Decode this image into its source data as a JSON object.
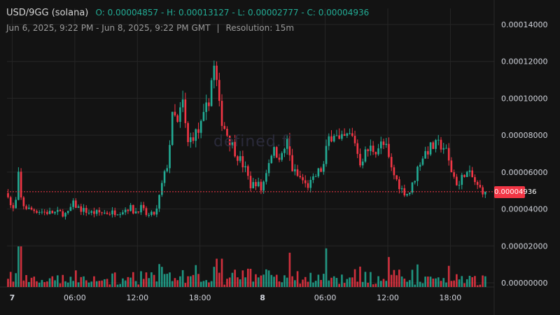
{
  "header": {
    "symbol": "USD/9GG (solana)",
    "ohlc": "O: 0.00004857 - H: 0.00013127 - L: 0.00002777 - C: 0.00004936",
    "date_range": "Jun 6, 2025, 9:22 PM - Jun 8, 2025, 9:22 PM GMT",
    "separator": "|",
    "resolution": "Resolution: 15m"
  },
  "watermark": "defined.fi",
  "last_price_label": "0.00004936",
  "colors": {
    "up": "#22ab94",
    "down": "#f23645",
    "grid": "#262626",
    "axis_text": "#d1d4dc",
    "background": "#131313"
  },
  "chart_data": {
    "type": "candlestick",
    "title": "USD/9GG (solana)",
    "resolution": "15m",
    "price_axis_ticks": [
      "0.00014000",
      "0.00012000",
      "0.00010000",
      "0.00008000",
      "0.00006000",
      "0.00004000",
      "0.00002000",
      "0.00000000"
    ],
    "price_axis_values": [
      0.00014,
      0.00012,
      0.0001,
      8e-05,
      6e-05,
      4e-05,
      2e-05,
      0
    ],
    "ylim": [
      -3e-06,
      0.000151
    ],
    "time_axis_ticks": [
      {
        "label": "7",
        "hour": 27,
        "bold": true
      },
      {
        "label": "06:00",
        "hour": 33,
        "bold": false
      },
      {
        "label": "12:00",
        "hour": 39,
        "bold": false
      },
      {
        "label": "18:00",
        "hour": 45,
        "bold": false
      },
      {
        "label": "8",
        "hour": 51,
        "bold": true
      },
      {
        "label": "06:00",
        "hour": 57,
        "bold": false
      },
      {
        "label": "12:00",
        "hour": 63,
        "bold": false
      },
      {
        "label": "18:00",
        "hour": 69,
        "bold": false
      }
    ],
    "xlim_hours": [
      26.5,
      73.2
    ],
    "last_close": 4.936e-05,
    "price_keypoints": [
      [
        26.6,
        4.857e-05
      ],
      [
        27.0,
        3.8e-05
      ],
      [
        27.4,
        4.5e-05
      ],
      [
        27.6,
        5.8e-05
      ],
      [
        27.9,
        4.3e-05
      ],
      [
        28.5,
        4e-05
      ],
      [
        29.5,
        3.9e-05
      ],
      [
        30.5,
        3.8e-05
      ],
      [
        31.5,
        3.8e-05
      ],
      [
        32.3,
        3.7e-05
      ],
      [
        32.8,
        4.3e-05
      ],
      [
        33.5,
        4e-05
      ],
      [
        34.5,
        3.8e-05
      ],
      [
        35.5,
        3.8e-05
      ],
      [
        36.5,
        3.8e-05
      ],
      [
        37.5,
        3.9e-05
      ],
      [
        38.3,
        4.1e-05
      ],
      [
        38.7,
        3.8e-05
      ],
      [
        39.3,
        4.1e-05
      ],
      [
        40.0,
        3.6e-05
      ],
      [
        40.8,
        3.8e-05
      ],
      [
        41.3,
        5.2e-05
      ],
      [
        41.9,
        6.5e-05
      ],
      [
        42.4,
        9.2e-05
      ],
      [
        42.9,
        8.5e-05
      ],
      [
        43.3,
        0.0001
      ],
      [
        43.8,
        7.5e-05
      ],
      [
        44.3,
        8e-05
      ],
      [
        44.9,
        8.2e-05
      ],
      [
        45.3,
        8.8e-05
      ],
      [
        45.8,
        9.8e-05
      ],
      [
        46.3,
        0.000118
      ],
      [
        46.6,
        0.000108
      ],
      [
        46.9,
        9.2e-05
      ],
      [
        47.3,
        8.5e-05
      ],
      [
        47.8,
        7.8e-05
      ],
      [
        48.5,
        7e-05
      ],
      [
        49.3,
        6.2e-05
      ],
      [
        49.9,
        5.2e-05
      ],
      [
        50.4,
        5.5e-05
      ],
      [
        50.9,
        5e-05
      ],
      [
        51.4,
        6.2e-05
      ],
      [
        51.9,
        7.2e-05
      ],
      [
        52.4,
        7e-05
      ],
      [
        52.9,
        6.8e-05
      ],
      [
        53.3,
        7.8e-05
      ],
      [
        53.8,
        6.2e-05
      ],
      [
        54.3,
        5.8e-05
      ],
      [
        54.8,
        5.6e-05
      ],
      [
        55.2,
        5.2e-05
      ],
      [
        55.8,
        5.5e-05
      ],
      [
        56.3,
        6e-05
      ],
      [
        56.8,
        6.2e-05
      ],
      [
        57.3,
        7.8e-05
      ],
      [
        57.9,
        8.2e-05
      ],
      [
        58.3,
        7.6e-05
      ],
      [
        58.8,
        7.8e-05
      ],
      [
        59.3,
        8e-05
      ],
      [
        59.8,
        7.8e-05
      ],
      [
        60.3,
        6.5e-05
      ],
      [
        60.8,
        7e-05
      ],
      [
        61.3,
        7.3e-05
      ],
      [
        61.8,
        7.2e-05
      ],
      [
        62.3,
        7.5e-05
      ],
      [
        62.8,
        7.4e-05
      ],
      [
        63.3,
        6.2e-05
      ],
      [
        63.8,
        5.6e-05
      ],
      [
        64.4,
        5e-05
      ],
      [
        65.0,
        4.8e-05
      ],
      [
        65.5,
        5.5e-05
      ],
      [
        66.0,
        6.5e-05
      ],
      [
        66.5,
        7e-05
      ],
      [
        67.0,
        7.3e-05
      ],
      [
        67.5,
        7.4e-05
      ],
      [
        68.0,
        7.5e-05
      ],
      [
        68.5,
        7.3e-05
      ],
      [
        69.0,
        6.2e-05
      ],
      [
        69.3,
        5.8e-05
      ],
      [
        69.8,
        5.2e-05
      ],
      [
        70.3,
        6e-05
      ],
      [
        71.0,
        5.8e-05
      ],
      [
        71.6,
        5.2e-05
      ],
      [
        72.1,
        5e-05
      ],
      [
        72.5,
        4.936e-05
      ]
    ]
  }
}
